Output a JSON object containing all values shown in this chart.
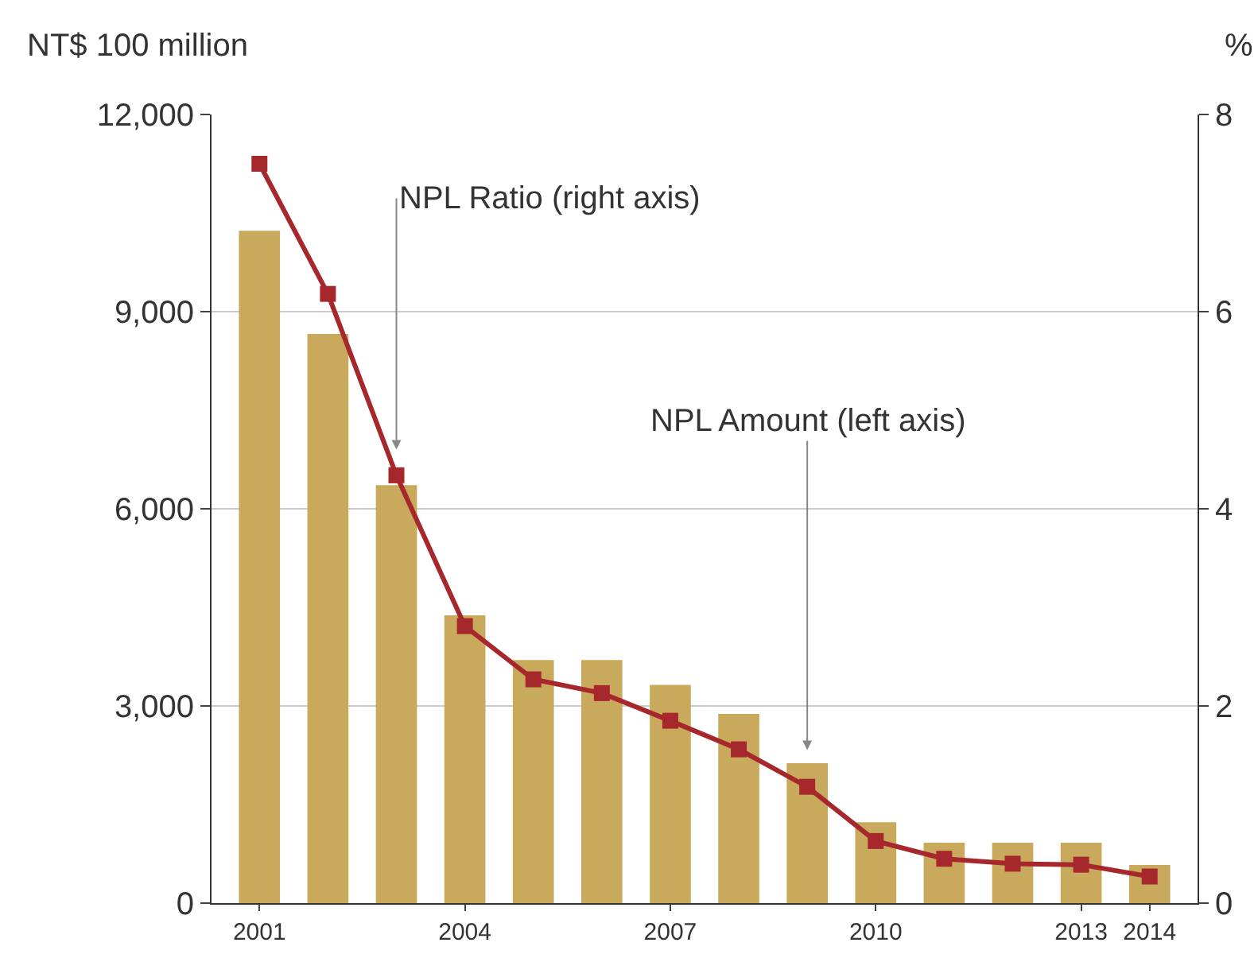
{
  "chart_data": {
    "type": "bar",
    "ylabel": "NT$ 100 million",
    "y2label": "%",
    "categories": [
      "2001",
      null,
      null,
      "2004",
      null,
      null,
      "2007",
      null,
      null,
      "2010",
      null,
      null,
      "2013",
      "2014"
    ],
    "series": [
      {
        "color": "#c9a95c",
        "values": [
          10230,
          8660,
          6360,
          4380,
          3700,
          3700,
          3320,
          2880,
          2130,
          1230,
          920,
          920,
          920,
          580
        ]
      },
      {
        "type": "line",
        "color": "#a6282c",
        "axis": "y2",
        "marker": "square",
        "line_style": "solid",
        "values": [
          7.5,
          6.18,
          4.34,
          2.81,
          2.27,
          2.13,
          1.85,
          1.56,
          1.18,
          0.63,
          0.45,
          0.4,
          0.39,
          0.27
        ]
      }
    ],
    "ylim": [
      0,
      12000
    ],
    "yticks": [
      {
        "value": 0,
        "label": "0"
      },
      {
        "value": 3000,
        "label": "3,000"
      },
      {
        "value": 6000,
        "label": "6,000"
      },
      {
        "value": 9000,
        "label": "9,000"
      },
      {
        "value": 12000,
        "label": "12,000"
      }
    ],
    "y2lim": [
      0,
      8
    ],
    "y2ticks": [
      0,
      2,
      4,
      6,
      8
    ],
    "grid": "y",
    "legend": false,
    "annotations": [
      "NPL Ratio (right axis)",
      "NPL Amount (left axis)"
    ]
  }
}
